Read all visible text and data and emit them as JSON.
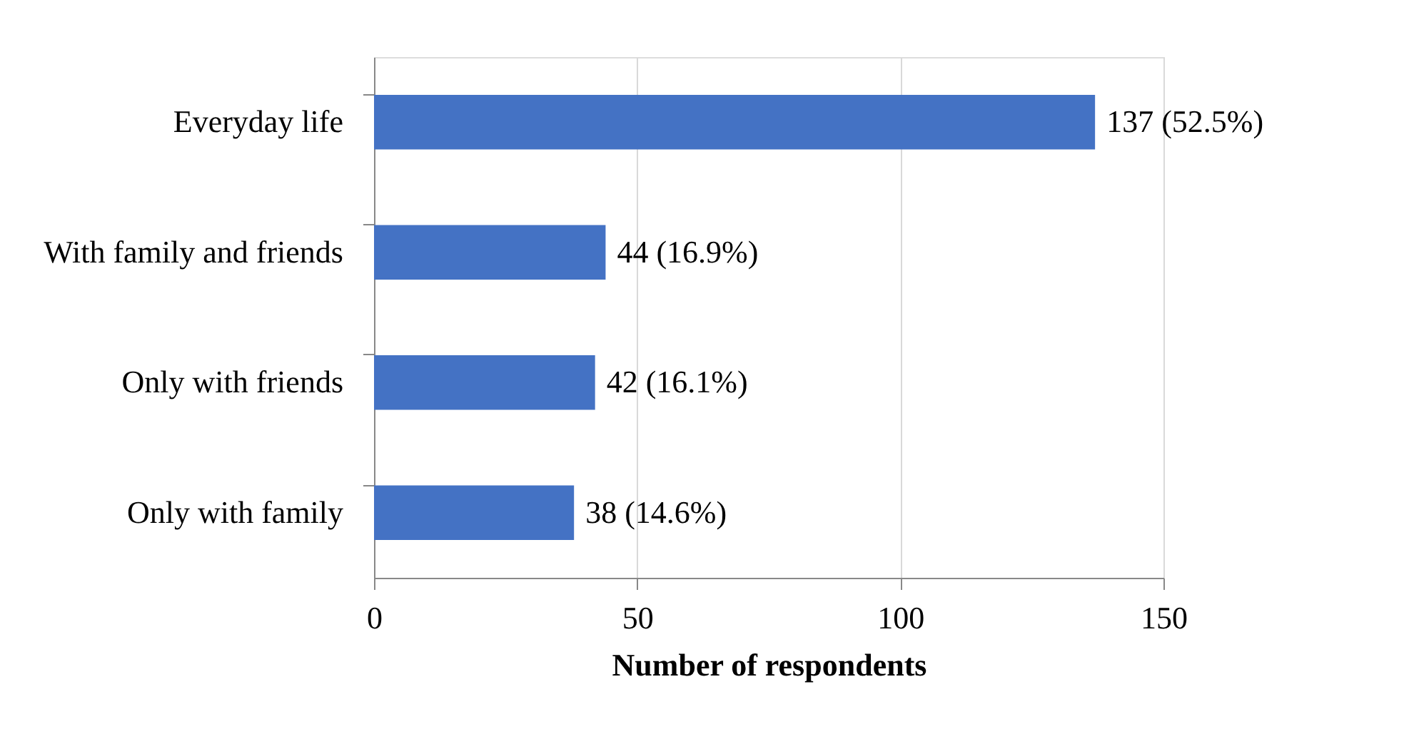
{
  "chart_data": {
    "type": "bar",
    "orientation": "horizontal",
    "xlabel": "Number of respondents",
    "categories": [
      "Everyday life",
      "With family and friends",
      "Only with friends",
      "Only with family"
    ],
    "values": [
      137,
      44,
      42,
      38
    ],
    "color": "#4472c4",
    "value_labels": [
      "137 (52.5%)",
      "44 (16.9%)",
      "42 (16.1%)",
      "38 (14.6%)"
    ],
    "xlim": [
      0,
      150
    ],
    "xticks": [
      0,
      50,
      100,
      150
    ],
    "grid": "x"
  }
}
